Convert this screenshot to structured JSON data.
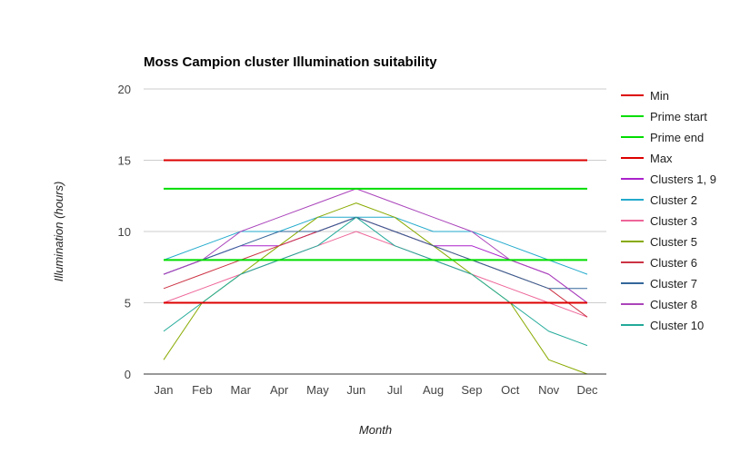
{
  "chart_data": {
    "type": "line",
    "title": "Moss Campion cluster Illumination suitability",
    "xlabel": "Month",
    "ylabel": "Illumination (hours)",
    "categories": [
      "Jan",
      "Feb",
      "Mar",
      "Apr",
      "May",
      "Jun",
      "Jul",
      "Aug",
      "Sep",
      "Oct",
      "Nov",
      "Dec"
    ],
    "ylim": [
      0,
      20
    ],
    "yticks": [
      "0",
      "5",
      "10",
      "15",
      "20"
    ],
    "grid": true,
    "legend_position": "right",
    "series": [
      {
        "name": "Min",
        "color": "#dd0000",
        "width": 2,
        "values": [
          5,
          5,
          5,
          5,
          5,
          5,
          5,
          5,
          5,
          5,
          5,
          5
        ]
      },
      {
        "name": "Prime start",
        "color": "#00dd00",
        "width": 2,
        "values": [
          8,
          8,
          8,
          8,
          8,
          8,
          8,
          8,
          8,
          8,
          8,
          8
        ]
      },
      {
        "name": "Prime end",
        "color": "#00dd00",
        "width": 2,
        "values": [
          13,
          13,
          13,
          13,
          13,
          13,
          13,
          13,
          13,
          13,
          13,
          13
        ]
      },
      {
        "name": "Max",
        "color": "#dd0000",
        "width": 2,
        "values": [
          15,
          15,
          15,
          15,
          15,
          15,
          15,
          15,
          15,
          15,
          15,
          15
        ]
      },
      {
        "name": "Clusters 1, 9",
        "color": "#aa22cc",
        "width": 1,
        "values": [
          7,
          8,
          9,
          9,
          10,
          11,
          10,
          9,
          9,
          8,
          7,
          5
        ]
      },
      {
        "name": "Cluster 2",
        "color": "#22aacc",
        "width": 1,
        "values": [
          8,
          9,
          10,
          10,
          11,
          11,
          11,
          10,
          10,
          9,
          8,
          7
        ]
      },
      {
        "name": "Cluster 3",
        "color": "#ee6699",
        "width": 1,
        "values": [
          5,
          6,
          7,
          8,
          9,
          10,
          9,
          8,
          7,
          6,
          5,
          4
        ]
      },
      {
        "name": "Cluster 5",
        "color": "#88aa00",
        "width": 1,
        "values": [
          1,
          5,
          7,
          9,
          11,
          12,
          11,
          9,
          7,
          5,
          1,
          0
        ]
      },
      {
        "name": "Cluster 6",
        "color": "#cc3344",
        "width": 1,
        "values": [
          6,
          7,
          8,
          9,
          10,
          11,
          10,
          9,
          8,
          7,
          6,
          4
        ]
      },
      {
        "name": "Cluster 7",
        "color": "#336699",
        "width": 1,
        "values": [
          7,
          8,
          9,
          10,
          10,
          11,
          10,
          9,
          8,
          7,
          6,
          6
        ]
      },
      {
        "name": "Cluster 8",
        "color": "#aa44bb",
        "width": 1,
        "values": [
          7,
          8,
          10,
          11,
          12,
          13,
          12,
          11,
          10,
          8,
          7,
          5
        ]
      },
      {
        "name": "Cluster 10",
        "color": "#22aa99",
        "width": 1,
        "values": [
          3,
          5,
          7,
          8,
          9,
          11,
          9,
          8,
          7,
          5,
          3,
          2
        ]
      }
    ]
  }
}
